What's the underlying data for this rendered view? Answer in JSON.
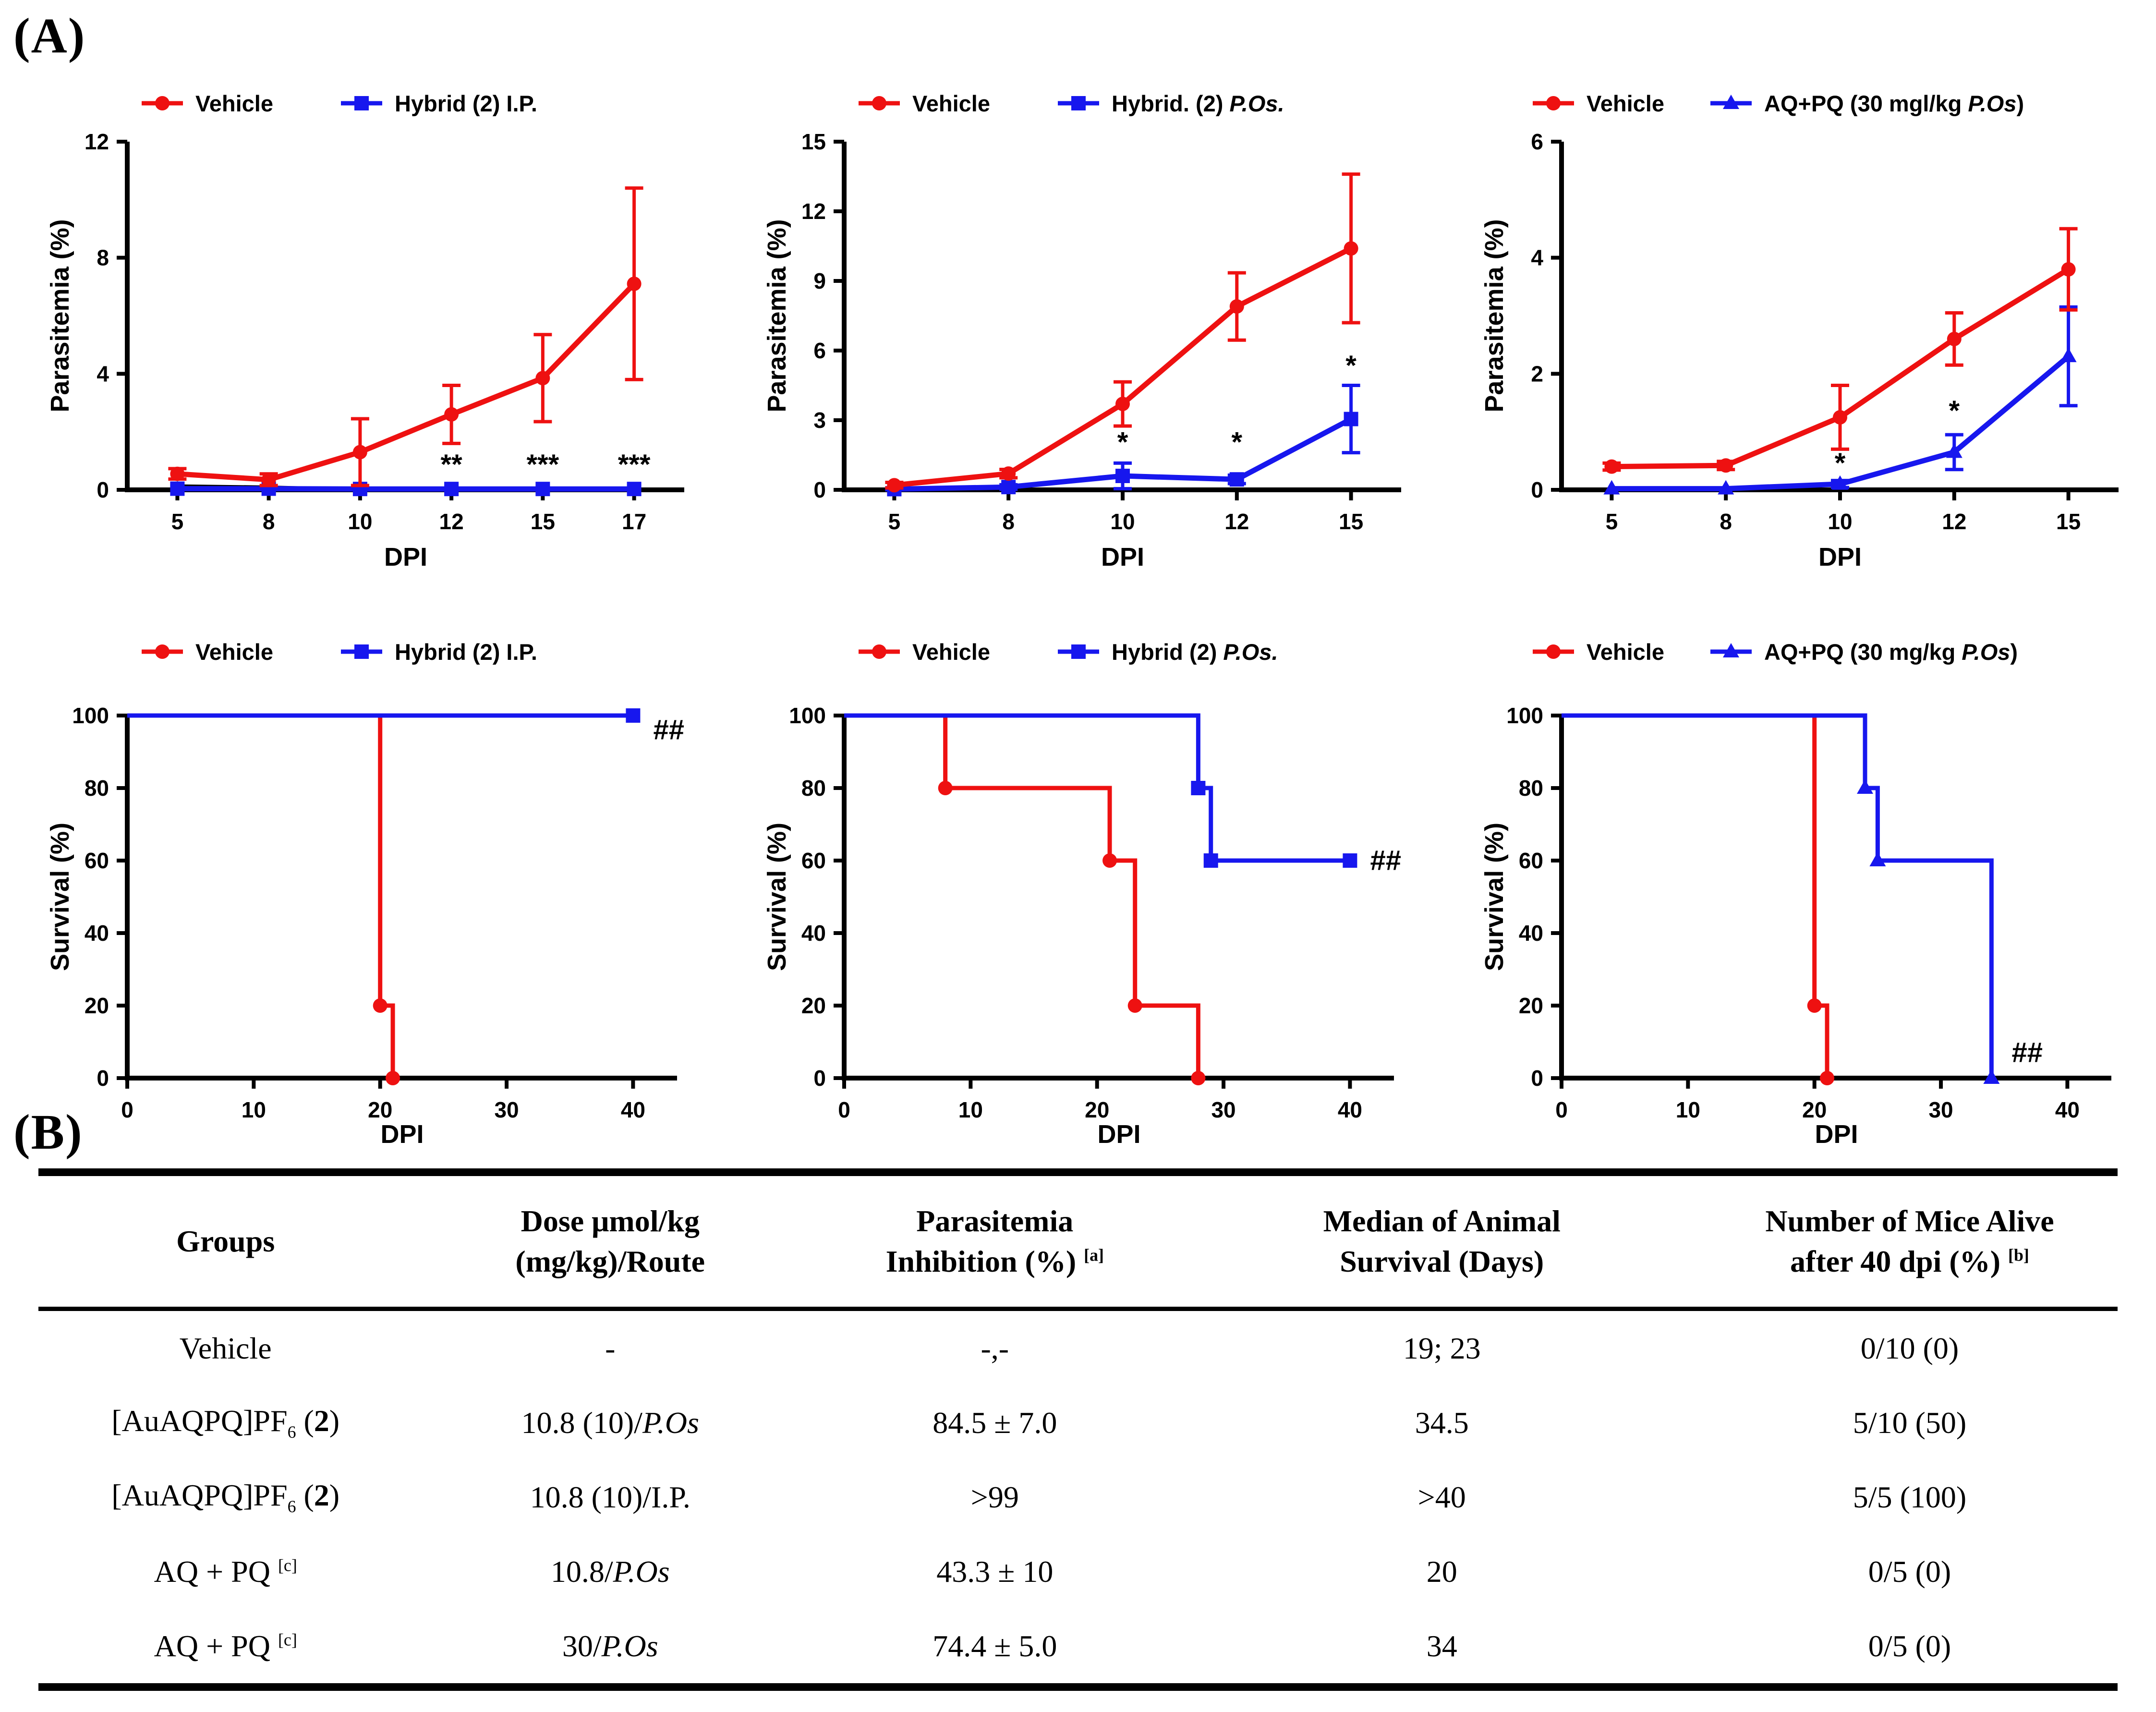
{
  "panels": {
    "a": "(A)",
    "b": "(B)"
  },
  "colors": {
    "vehicle": "#EE1111",
    "treatment": "#1717EE",
    "black": "#000000"
  },
  "chart_data": [
    {
      "name": "parasitemia-chart-hybrid-ip",
      "type": "line",
      "ylabel": "Parasitemia (%)",
      "xlabel": "DPI",
      "ylim": [
        0,
        12
      ],
      "yticks": [
        0,
        4,
        8,
        12
      ],
      "categories": [
        "5",
        "8",
        "10",
        "12",
        "15",
        "17"
      ],
      "legend": [
        {
          "color": "vehicle",
          "marker": "circle",
          "parts": [
            {
              "t": "Vehicle"
            }
          ]
        },
        {
          "color": "treatment",
          "marker": "square",
          "parts": [
            {
              "t": "Hybrid ("
            },
            {
              "t": "2",
              "s": "b"
            },
            {
              "t": ") I.P."
            }
          ]
        }
      ],
      "series": [
        {
          "name": "baseline-trace",
          "color": "black",
          "marker": "tri-small",
          "width": 6,
          "values": [
            0.14,
            0.1,
            0.02,
            null,
            null,
            null
          ],
          "err": [
            0,
            0,
            0,
            0,
            0,
            0
          ]
        },
        {
          "name": "Hybrid (2) I.P.",
          "color": "treatment",
          "marker": "square",
          "values": [
            0.04,
            0.04,
            0.03,
            0.03,
            0.03,
            0.03
          ],
          "err": [
            0,
            0,
            0,
            0,
            0,
            0
          ]
        },
        {
          "name": "Vehicle",
          "color": "vehicle",
          "marker": "circle",
          "values": [
            0.55,
            0.35,
            1.3,
            2.6,
            3.85,
            7.1
          ],
          "err": [
            0.18,
            0.2,
            1.15,
            1.0,
            1.5,
            3.3
          ]
        }
      ],
      "annotations": [
        {
          "ci": 3,
          "y": 0.55,
          "text": "**"
        },
        {
          "ci": 4,
          "y": 0.55,
          "text": "***"
        },
        {
          "ci": 5,
          "y": 0.55,
          "text": "***"
        }
      ]
    },
    {
      "name": "parasitemia-chart-hybrid-pos",
      "type": "line",
      "ylabel": "Parasitemia (%)",
      "xlabel": "DPI",
      "ylim": [
        0,
        15
      ],
      "yticks": [
        0,
        3,
        6,
        9,
        12,
        15
      ],
      "categories": [
        "5",
        "8",
        "10",
        "12",
        "15"
      ],
      "legend": [
        {
          "color": "vehicle",
          "marker": "circle",
          "parts": [
            {
              "t": "Vehicle"
            }
          ]
        },
        {
          "color": "treatment",
          "marker": "square",
          "parts": [
            {
              "t": "Hybrid. ("
            },
            {
              "t": "2",
              "s": "b"
            },
            {
              "t": ") "
            },
            {
              "t": "P.Os.",
              "s": "i"
            }
          ]
        }
      ],
      "series": [
        {
          "name": "Hybrid. (2) P.Os.",
          "color": "treatment",
          "marker": "square",
          "values": [
            0.03,
            0.12,
            0.6,
            0.45,
            3.05
          ],
          "err": [
            0.06,
            0.1,
            0.55,
            0.18,
            1.45
          ]
        },
        {
          "name": "Vehicle",
          "color": "vehicle",
          "marker": "circle",
          "values": [
            0.2,
            0.7,
            3.7,
            7.9,
            10.4
          ],
          "err": [
            0.12,
            0.18,
            0.95,
            1.45,
            3.2
          ]
        }
      ],
      "annotations": [
        {
          "ci": 2,
          "y": 1.65,
          "text": "*"
        },
        {
          "ci": 3,
          "y": 1.65,
          "text": "*"
        },
        {
          "ci": 4,
          "y": 4.95,
          "text": "*"
        }
      ]
    },
    {
      "name": "parasitemia-chart-aqpq",
      "type": "line",
      "ylabel": "Parasitemia (%)",
      "xlabel": "DPI",
      "ylim": [
        0,
        6
      ],
      "yticks": [
        0,
        2,
        4,
        6
      ],
      "categories": [
        "5",
        "8",
        "10",
        "12",
        "15"
      ],
      "legend": [
        {
          "color": "vehicle",
          "marker": "circle",
          "parts": [
            {
              "t": "Vehicle"
            }
          ]
        },
        {
          "color": "treatment",
          "marker": "triangle",
          "parts": [
            {
              "t": "AQ+PQ (30 mgl/kg "
            },
            {
              "t": "P.Os",
              "s": "i"
            },
            {
              "t": ")"
            }
          ]
        }
      ],
      "series": [
        {
          "name": "AQ+PQ (30 mgl/kg P.Os)",
          "color": "treatment",
          "marker": "triangle",
          "values": [
            0.02,
            0.02,
            0.1,
            0.65,
            2.3
          ],
          "err": [
            0,
            0,
            0.06,
            0.3,
            0.85
          ]
        },
        {
          "name": "Vehicle",
          "color": "vehicle",
          "marker": "circle",
          "values": [
            0.4,
            0.42,
            1.25,
            2.6,
            3.8
          ],
          "err": [
            0.06,
            0.07,
            0.55,
            0.45,
            0.7
          ]
        }
      ],
      "annotations": [
        {
          "ci": 2,
          "y": 0.3,
          "text": "*"
        },
        {
          "ci": 3,
          "y": 1.2,
          "text": "*"
        }
      ]
    },
    {
      "name": "survival-chart-hybrid-ip",
      "type": "step",
      "ylabel": "Survival (%)",
      "xlabel": "DPI",
      "ylim": [
        0,
        100
      ],
      "yticks": [
        0,
        20,
        40,
        60,
        80,
        100
      ],
      "xlim": [
        0,
        40
      ],
      "xticks": [
        0,
        10,
        20,
        30,
        40
      ],
      "legend": [
        {
          "color": "vehicle",
          "marker": "circle",
          "parts": [
            {
              "t": "Vehicle"
            }
          ]
        },
        {
          "color": "treatment",
          "marker": "square",
          "parts": [
            {
              "t": "Hybrid ("
            },
            {
              "t": "2",
              "s": "b"
            },
            {
              "t": ") I.P."
            }
          ]
        }
      ],
      "series": [
        {
          "name": "Vehicle",
          "color": "vehicle",
          "marker": "circle",
          "steps": [
            [
              0,
              100
            ],
            [
              20,
              100
            ],
            [
              20,
              20
            ],
            [
              21,
              20
            ],
            [
              21,
              0
            ]
          ],
          "points": [
            [
              20,
              20
            ],
            [
              21,
              0
            ]
          ]
        },
        {
          "name": "Hybrid (2) I.P.",
          "color": "treatment",
          "marker": "square",
          "steps": [
            [
              0,
              100
            ],
            [
              40,
              100
            ]
          ],
          "points": [
            [
              40,
              100
            ]
          ]
        }
      ],
      "end_label": {
        "x": 41.6,
        "y": 96,
        "text": "##"
      }
    },
    {
      "name": "survival-chart-hybrid-pos",
      "type": "step",
      "ylabel": "Survival (%)",
      "xlabel": "DPI",
      "ylim": [
        0,
        100
      ],
      "yticks": [
        0,
        20,
        40,
        60,
        80,
        100
      ],
      "xlim": [
        0,
        40
      ],
      "xticks": [
        0,
        10,
        20,
        30,
        40
      ],
      "legend": [
        {
          "color": "vehicle",
          "marker": "circle",
          "parts": [
            {
              "t": "Vehicle"
            }
          ]
        },
        {
          "color": "treatment",
          "marker": "square",
          "parts": [
            {
              "t": "Hybrid ("
            },
            {
              "t": "2",
              "s": "b"
            },
            {
              "t": ") "
            },
            {
              "t": "P.Os.",
              "s": "i"
            }
          ]
        }
      ],
      "series": [
        {
          "name": "Vehicle",
          "color": "vehicle",
          "marker": "circle",
          "steps": [
            [
              0,
              100
            ],
            [
              8,
              100
            ],
            [
              8,
              80
            ],
            [
              21,
              80
            ],
            [
              21,
              60
            ],
            [
              23,
              60
            ],
            [
              23,
              20
            ],
            [
              28,
              20
            ],
            [
              28,
              0
            ]
          ],
          "points": [
            [
              8,
              80
            ],
            [
              21,
              60
            ],
            [
              23,
              20
            ],
            [
              28,
              0
            ]
          ]
        },
        {
          "name": "Hybrid (2) P.Os.",
          "color": "treatment",
          "marker": "square",
          "steps": [
            [
              0,
              100
            ],
            [
              28,
              100
            ],
            [
              28,
              80
            ],
            [
              29,
              80
            ],
            [
              29,
              60
            ],
            [
              40,
              60
            ]
          ],
          "points": [
            [
              28,
              80
            ],
            [
              29,
              60
            ],
            [
              40,
              60
            ]
          ]
        }
      ],
      "end_label": {
        "x": 41.6,
        "y": 60,
        "text": "##"
      }
    },
    {
      "name": "survival-chart-aqpq",
      "type": "step",
      "ylabel": "Survival (%)",
      "xlabel": "DPI",
      "ylim": [
        0,
        100
      ],
      "yticks": [
        0,
        20,
        40,
        60,
        80,
        100
      ],
      "xlim": [
        0,
        40
      ],
      "xticks": [
        0,
        10,
        20,
        30,
        40
      ],
      "legend": [
        {
          "color": "vehicle",
          "marker": "circle",
          "parts": [
            {
              "t": "Vehicle"
            }
          ]
        },
        {
          "color": "treatment",
          "marker": "triangle",
          "parts": [
            {
              "t": "AQ+PQ (30 mg/kg "
            },
            {
              "t": "P.Os",
              "s": "i"
            },
            {
              "t": ")"
            }
          ]
        }
      ],
      "series": [
        {
          "name": "Vehicle",
          "color": "vehicle",
          "marker": "circle",
          "steps": [
            [
              0,
              100
            ],
            [
              20,
              100
            ],
            [
              20,
              20
            ],
            [
              21,
              20
            ],
            [
              21,
              0
            ]
          ],
          "points": [
            [
              20,
              20
            ],
            [
              21,
              0
            ]
          ]
        },
        {
          "name": "AQ+PQ (30 mg/kg P.Os)",
          "color": "treatment",
          "marker": "triangle",
          "steps": [
            [
              0,
              100
            ],
            [
              24,
              100
            ],
            [
              24,
              80
            ],
            [
              25,
              80
            ],
            [
              25,
              60
            ],
            [
              34,
              60
            ],
            [
              34,
              0
            ]
          ],
          "points": [
            [
              24,
              80
            ],
            [
              25,
              60
            ],
            [
              34,
              0
            ]
          ]
        }
      ],
      "end_label": {
        "x": 35.6,
        "y": 7,
        "text": "##"
      }
    }
  ],
  "table": {
    "headers": [
      {
        "lines": [
          [
            {
              "t": "Groups"
            }
          ]
        ]
      },
      {
        "lines": [
          [
            {
              "t": "Dose μmol/kg"
            }
          ],
          [
            {
              "t": "(mg/kg)/Route"
            }
          ]
        ]
      },
      {
        "lines": [
          [
            {
              "t": "Parasitemia"
            }
          ],
          [
            {
              "t": "Inhibition (%) "
            },
            {
              "t": "[a]",
              "s": "sup"
            }
          ]
        ]
      },
      {
        "lines": [
          [
            {
              "t": "Median of Animal"
            }
          ],
          [
            {
              "t": "Survival (Days)"
            }
          ]
        ]
      },
      {
        "lines": [
          [
            {
              "t": "Number of Mice Alive"
            }
          ],
          [
            {
              "t": "after 40 dpi (%) "
            },
            {
              "t": "[b]",
              "s": "sup"
            }
          ]
        ]
      }
    ],
    "rows": [
      [
        [
          {
            "t": "Vehicle"
          }
        ],
        [
          {
            "t": "-"
          }
        ],
        [
          {
            "t": "-,-"
          }
        ],
        [
          {
            "t": "19; 23"
          }
        ],
        [
          {
            "t": "0/10 (0)"
          }
        ]
      ],
      [
        [
          {
            "t": "[AuAQPQ]PF"
          },
          {
            "t": "6",
            "s": "sub"
          },
          {
            "t": " ("
          },
          {
            "t": "2",
            "s": "b"
          },
          {
            "t": ")"
          }
        ],
        [
          {
            "t": "10.8 (10)/"
          },
          {
            "t": "P.Os",
            "s": "i"
          }
        ],
        [
          {
            "t": "84.5 ± 7.0"
          }
        ],
        [
          {
            "t": "34.5"
          }
        ],
        [
          {
            "t": "5/10 (50)"
          }
        ]
      ],
      [
        [
          {
            "t": "[AuAQPQ]PF"
          },
          {
            "t": "6",
            "s": "sub"
          },
          {
            "t": " ("
          },
          {
            "t": "2",
            "s": "b"
          },
          {
            "t": ")"
          }
        ],
        [
          {
            "t": "10.8 (10)/I.P."
          }
        ],
        [
          {
            "t": ">99"
          }
        ],
        [
          {
            "t": ">40"
          }
        ],
        [
          {
            "t": "5/5 (100)"
          }
        ]
      ],
      [
        [
          {
            "t": "AQ + PQ "
          },
          {
            "t": "[c]",
            "s": "sup"
          }
        ],
        [
          {
            "t": "10.8/"
          },
          {
            "t": "P.Os",
            "s": "i"
          }
        ],
        [
          {
            "t": "43.3 ± 10"
          }
        ],
        [
          {
            "t": "20"
          }
        ],
        [
          {
            "t": "0/5 (0)"
          }
        ]
      ],
      [
        [
          {
            "t": "AQ + PQ "
          },
          {
            "t": "[c]",
            "s": "sup"
          }
        ],
        [
          {
            "t": "30/"
          },
          {
            "t": "P.Os",
            "s": "i"
          }
        ],
        [
          {
            "t": "74.4 ± 5.0"
          }
        ],
        [
          {
            "t": "34"
          }
        ],
        [
          {
            "t": "0/5 (0)"
          }
        ]
      ]
    ]
  }
}
